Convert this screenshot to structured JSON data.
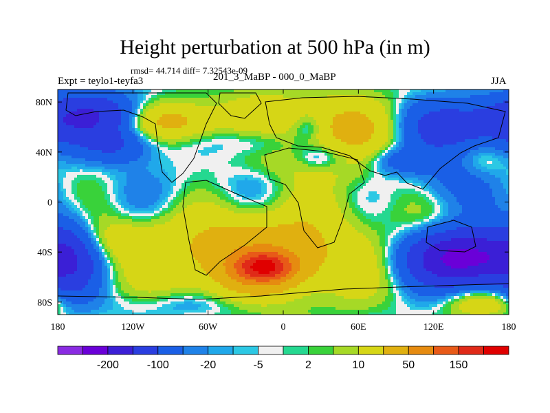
{
  "chart_data": {
    "type": "heatmap",
    "title": "Height perturbation at 500 hPa (in m)",
    "stats": "rmsd= 44.714 diff= 7.32543e-09",
    "left_label": "Expt = teylo1-teyfa3",
    "center_label": "201_3_MaBP - 000_0_MaBP",
    "right_label": "JJA",
    "x_range": [
      -180,
      180
    ],
    "y_range": [
      -90,
      90
    ],
    "x_ticks": [
      {
        "value": -180,
        "label": "180"
      },
      {
        "value": -120,
        "label": "120W"
      },
      {
        "value": -60,
        "label": "60W"
      },
      {
        "value": 0,
        "label": "0"
      },
      {
        "value": 60,
        "label": "60E"
      },
      {
        "value": 120,
        "label": "120E"
      },
      {
        "value": 180,
        "label": "180"
      }
    ],
    "y_ticks": [
      {
        "value": 80,
        "label": "80N"
      },
      {
        "value": 40,
        "label": "40N"
      },
      {
        "value": 0,
        "label": "0"
      },
      {
        "value": -40,
        "label": "40S"
      },
      {
        "value": -80,
        "label": "80S"
      }
    ],
    "colorbar": {
      "colors": [
        "#8a2be2",
        "#6a00d8",
        "#3b1fd6",
        "#2a3ee0",
        "#1a5fe6",
        "#1f82e8",
        "#20a8ea",
        "#2cc8e4",
        "#f0f0f0",
        "#25d890",
        "#39d23a",
        "#a6d926",
        "#d6d616",
        "#e0b010",
        "#e68b10",
        "#e85a18",
        "#e02a18",
        "#e00000"
      ],
      "labels": [
        {
          "index": 1,
          "text": "-200"
        },
        {
          "index": 3,
          "text": "-100"
        },
        {
          "index": 5,
          "text": "-20"
        },
        {
          "index": 7,
          "text": "-5"
        },
        {
          "index": 9,
          "text": "2"
        },
        {
          "index": 11,
          "text": "10"
        },
        {
          "index": 13,
          "text": "50"
        },
        {
          "index": 15,
          "text": "150"
        }
      ]
    },
    "field_features": [
      {
        "lon": -15,
        "lat": -52,
        "value": 190,
        "sx": 16,
        "sy": 8
      },
      {
        "lon": -20,
        "lat": -45,
        "value": 90,
        "sx": 55,
        "sy": 25
      },
      {
        "lon": -130,
        "lat": -30,
        "value": 30,
        "sx": 25,
        "sy": 12
      },
      {
        "lon": 20,
        "lat": 62,
        "value": 40,
        "sx": 70,
        "sy": 18
      },
      {
        "lon": -90,
        "lat": 65,
        "value": 60,
        "sx": 25,
        "sy": 10
      },
      {
        "lon": 60,
        "lat": 58,
        "value": 40,
        "sx": 40,
        "sy": 15
      },
      {
        "lon": 30,
        "lat": 30,
        "value": 20,
        "sx": 30,
        "sy": 10
      },
      {
        "lon": 60,
        "lat": 10,
        "value": 10,
        "sx": 60,
        "sy": 25
      },
      {
        "lon": 160,
        "lat": 35,
        "value": 15,
        "sx": 12,
        "sy": 10
      },
      {
        "lon": 160,
        "lat": -82,
        "value": 40,
        "sx": 20,
        "sy": 8
      },
      {
        "lon": -150,
        "lat": 70,
        "value": -80,
        "sx": 30,
        "sy": 12
      },
      {
        "lon": 135,
        "lat": 60,
        "value": -90,
        "sx": 45,
        "sy": 15
      },
      {
        "lon": 145,
        "lat": -45,
        "value": -180,
        "sx": 30,
        "sy": 15
      },
      {
        "lon": 130,
        "lat": 15,
        "value": -30,
        "sx": 25,
        "sy": 15
      },
      {
        "lon": -170,
        "lat": -45,
        "value": -60,
        "sx": 15,
        "sy": 25
      },
      {
        "lon": -130,
        "lat": 45,
        "value": -50,
        "sx": 20,
        "sy": 10
      },
      {
        "lon": -20,
        "lat": 50,
        "value": -40,
        "sx": 25,
        "sy": 10
      },
      {
        "lon": 20,
        "lat": 60,
        "value": -35,
        "sx": 10,
        "sy": 8
      },
      {
        "lon": 30,
        "lat": 35,
        "value": -40,
        "sx": 15,
        "sy": 8
      },
      {
        "lon": 95,
        "lat": 33,
        "value": -40,
        "sx": 20,
        "sy": 8
      },
      {
        "lon": -60,
        "lat": -82,
        "value": -20,
        "sx": 50,
        "sy": 8
      },
      {
        "lon": -60,
        "lat": 10,
        "value": -10,
        "sx": 50,
        "sy": 15
      }
    ]
  }
}
